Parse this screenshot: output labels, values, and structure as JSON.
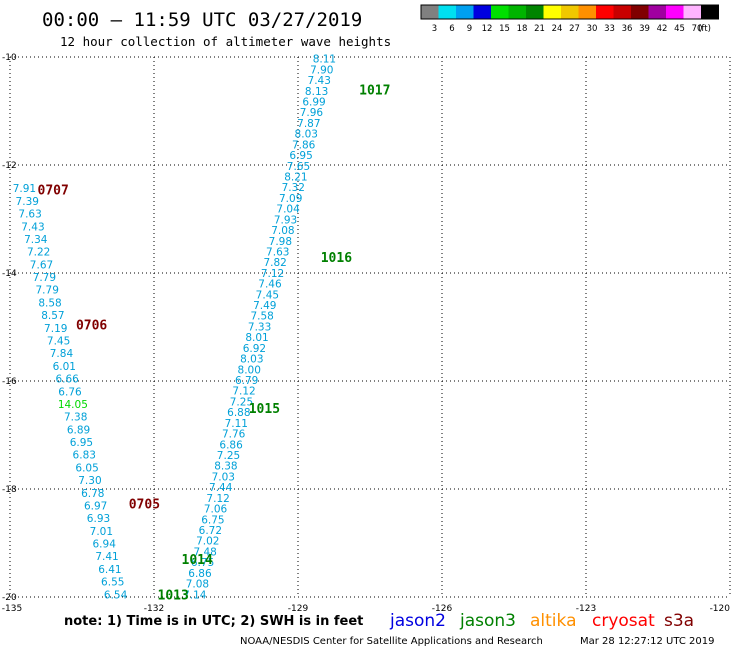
{
  "header": {
    "title": "00:00 — 11:59 UTC 03/27/2019",
    "subtitle": "12 hour collection of altimeter wave heights"
  },
  "legend": {
    "unit": "(ft)",
    "bins": [
      {
        "label": "3",
        "color": "#808080"
      },
      {
        "label": "6",
        "color": "#00e0f0"
      },
      {
        "label": "9",
        "color": "#00a0f0"
      },
      {
        "label": "12",
        "color": "#0000e0"
      },
      {
        "label": "15",
        "color": "#00e000"
      },
      {
        "label": "18",
        "color": "#00b400"
      },
      {
        "label": "21",
        "color": "#008400"
      },
      {
        "label": "24",
        "color": "#ffff00"
      },
      {
        "label": "27",
        "color": "#f0c800"
      },
      {
        "label": "30",
        "color": "#ff9000"
      },
      {
        "label": "33",
        "color": "#ff0000"
      },
      {
        "label": "36",
        "color": "#c80000"
      },
      {
        "label": "39",
        "color": "#800000"
      },
      {
        "label": "42",
        "color": "#a000a0"
      },
      {
        "label": "45",
        "color": "#ff00ff"
      },
      {
        "label": "70",
        "color": "#ffb4ff"
      },
      {
        "label": "",
        "color": "#000000"
      }
    ]
  },
  "map": {
    "lon_range": [
      -135,
      -120
    ],
    "lat_range": [
      -20,
      -10
    ],
    "lon_ticks": [
      "-135",
      "-132",
      "-129",
      "-126",
      "-123",
      "-120"
    ],
    "lat_ticks": [
      "-10",
      "-12",
      "-14",
      "-16",
      "-18",
      "-20"
    ],
    "grid": "dotted"
  },
  "tracks": [
    {
      "id": "east",
      "color": "#00a0d8",
      "start": [
        -128.45,
        -10.03
      ],
      "end": [
        -131.15,
        -19.95
      ],
      "values": [
        "8.11",
        "7.90",
        "7.43",
        "8.13",
        "6.99",
        "7.96",
        "7.87",
        "8.03",
        "7.86",
        "6.95",
        "7.65",
        "8.21",
        "7.32",
        "7.09",
        "7.04",
        "7.93",
        "7.08",
        "7.98",
        "7.63",
        "7.82",
        "7.12",
        "7.46",
        "7.45",
        "7.49",
        "7.58",
        "7.33",
        "8.01",
        "6.92",
        "8.03",
        "8.00",
        "6.79",
        "7.12",
        "7.25",
        "6.88",
        "7.11",
        "7.76",
        "6.86",
        "7.25",
        "8.38",
        "7.03",
        "7.44",
        "7.12",
        "7.06",
        "6.75",
        "6.72",
        "7.02",
        "7.48",
        "6.75",
        "6.86",
        "7.08",
        "7.14"
      ],
      "time_labels": [
        {
          "text": "1017",
          "lat": -10.6,
          "lon": -127.4
        },
        {
          "text": "1016",
          "lat": -13.7,
          "lon": -128.2
        },
        {
          "text": "1015",
          "lat": -16.5,
          "lon": -129.7
        },
        {
          "text": "1014",
          "lat": -19.3,
          "lon": -131.1
        },
        {
          "text": "1013",
          "lat": -19.95,
          "lon": -131.6
        }
      ],
      "time_color": "#008000"
    },
    {
      "id": "west",
      "color": "#00a0d8",
      "start": [
        -134.7,
        -12.43
      ],
      "end": [
        -132.8,
        -19.95
      ],
      "values": [
        "7.91",
        "7.39",
        "7.63",
        "7.43",
        "7.34",
        "7.22",
        "7.67",
        "7.79",
        "7.79",
        "8.58",
        "8.57",
        "7.19",
        "7.45",
        "7.84",
        "6.01",
        "6.66",
        "6.76",
        "14.05",
        "7.38",
        "6.89",
        "6.95",
        "6.83",
        "6.05",
        "7.30",
        "6.78",
        "6.97",
        "6.93",
        "7.01",
        "6.94",
        "7.41",
        "6.41",
        "6.55",
        "6.54"
      ],
      "highlight": {
        "index": 17,
        "color": "#00d800"
      },
      "time_labels": [
        {
          "text": "0707",
          "lat": -12.45,
          "lon": -134.1
        },
        {
          "text": "0706",
          "lat": -14.95,
          "lon": -133.3
        },
        {
          "text": "0705",
          "lat": -18.27,
          "lon": -132.2
        }
      ],
      "time_color": "#800000"
    }
  ],
  "footer": {
    "note": "note: 1) Time is in UTC; 2) SWH is in feet",
    "satellites": [
      {
        "name": "jason2",
        "color": "#0000e0"
      },
      {
        "name": "jason3",
        "color": "#008000"
      },
      {
        "name": "altika",
        "color": "#ff9000"
      },
      {
        "name": "cryosat",
        "color": "#ff0000"
      },
      {
        "name": "s3a",
        "color": "#800000"
      }
    ],
    "credit": "NOAA/NESDIS Center for Satellite Applications and Research",
    "timestamp": "Mar 28 12:27:12 UTC 2019"
  }
}
